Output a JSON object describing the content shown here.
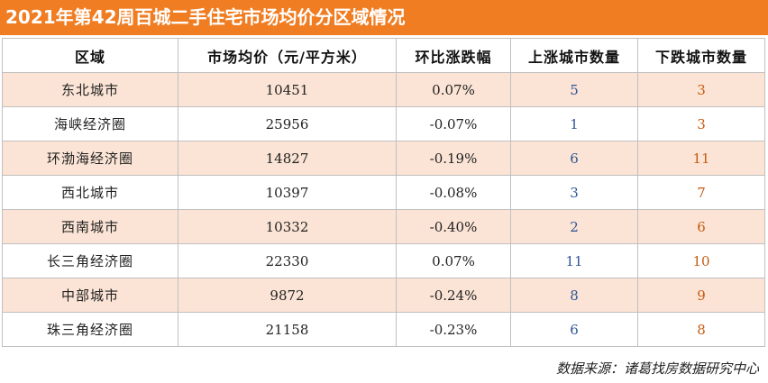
{
  "title": "2021年第42周百城二手住宅市场均价分区域情况",
  "table": {
    "headers": [
      "区域",
      "市场均价（元/平方米）",
      "环比涨跌幅",
      "上涨城市数量",
      "下跌城市数量"
    ],
    "rows": [
      [
        "东北城市",
        "10451",
        "0.07%",
        "5",
        "3"
      ],
      [
        "海峡经济圈",
        "25956",
        "-0.07%",
        "1",
        "3"
      ],
      [
        "环渤海经济圈",
        "14827",
        "-0.19%",
        "6",
        "11"
      ],
      [
        "西北城市",
        "10397",
        "-0.08%",
        "3",
        "7"
      ],
      [
        "西南城市",
        "10332",
        "-0.40%",
        "2",
        "6"
      ],
      [
        "长三角经济圈",
        "22330",
        "0.07%",
        "11",
        "10"
      ],
      [
        "中部城市",
        "9872",
        "-0.24%",
        "8",
        "9"
      ],
      [
        "珠三角经济圈",
        "21158",
        "-0.23%",
        "6",
        "8"
      ]
    ]
  },
  "source": "数据来源：诸葛找房数据研究中心",
  "colors": {
    "title_bg": "#f07d22",
    "row_shade": "#fbe4d5",
    "up_count": "#2f5496",
    "down_count": "#c55a11"
  }
}
